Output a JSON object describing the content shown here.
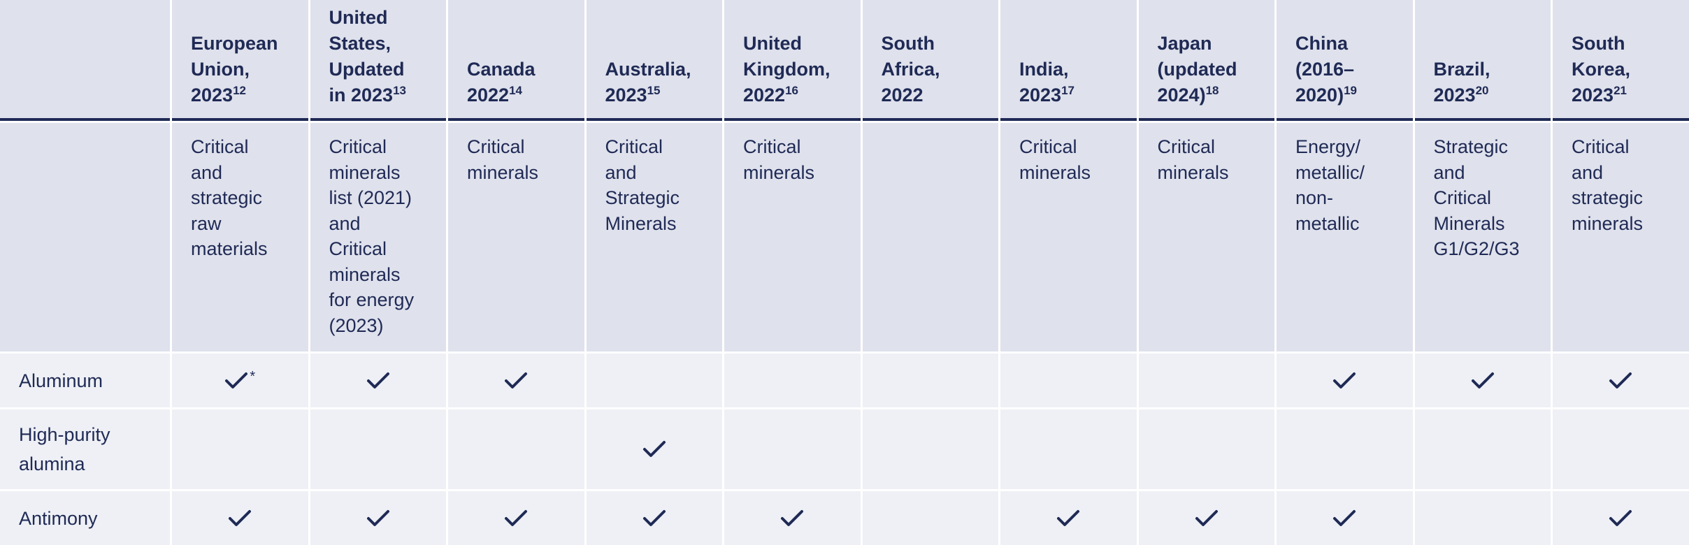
{
  "table": {
    "columns": [
      {
        "lines": [
          "European",
          "Union,",
          "2023"
        ],
        "sup": "12"
      },
      {
        "lines": [
          "United",
          "States,",
          "Updated",
          "in 2023"
        ],
        "sup": "13"
      },
      {
        "lines": [
          "Canada",
          "2022"
        ],
        "sup": "14"
      },
      {
        "lines": [
          "Australia,",
          "2023"
        ],
        "sup": "15"
      },
      {
        "lines": [
          "United",
          "Kingdom,",
          "2022"
        ],
        "sup": "16"
      },
      {
        "lines": [
          "South",
          "Africa,",
          "2022"
        ],
        "sup": null
      },
      {
        "lines": [
          "India,",
          "2023"
        ],
        "sup": "17"
      },
      {
        "lines": [
          "Japan",
          "(updated",
          "2024)"
        ],
        "sup": "18"
      },
      {
        "lines": [
          "China",
          "(2016–",
          "2020)"
        ],
        "sup": "19"
      },
      {
        "lines": [
          "Brazil,",
          "2023"
        ],
        "sup": "20"
      },
      {
        "lines": [
          "South",
          "Korea,",
          "2023"
        ],
        "sup": "21"
      }
    ],
    "list_names": [
      [
        "Critical",
        "and",
        "strategic",
        "raw",
        "materials"
      ],
      [
        "Critical",
        "minerals",
        "list (2021)",
        "and",
        "Critical",
        "minerals",
        "for energy",
        "(2023)"
      ],
      [
        "Critical",
        "minerals"
      ],
      [
        "Critical",
        "and",
        "Strategic",
        "Minerals"
      ],
      [
        "Critical",
        "minerals"
      ],
      null,
      [
        "Critical",
        "minerals"
      ],
      [
        "Critical",
        "minerals"
      ],
      [
        "Energy/",
        "metallic/",
        "non-",
        "metallic"
      ],
      [
        "Strategic",
        "and",
        "Critical",
        "Minerals",
        "G1/G2/G3"
      ],
      [
        "Critical",
        "and",
        "strategic",
        "minerals"
      ]
    ],
    "rows": [
      {
        "label": "Aluminum",
        "checks": [
          true,
          true,
          true,
          false,
          false,
          false,
          false,
          false,
          true,
          true,
          true
        ],
        "check_notes": [
          "*",
          null,
          null,
          null,
          null,
          null,
          null,
          null,
          null,
          null,
          null
        ]
      },
      {
        "label": "High-purity alumina",
        "checks": [
          false,
          false,
          false,
          true,
          false,
          false,
          false,
          false,
          false,
          false,
          false
        ],
        "check_notes": [
          null,
          null,
          null,
          null,
          null,
          null,
          null,
          null,
          null,
          null,
          null
        ]
      },
      {
        "label": "Antimony",
        "checks": [
          true,
          true,
          true,
          true,
          true,
          false,
          true,
          true,
          true,
          false,
          true
        ],
        "check_notes": [
          null,
          null,
          null,
          null,
          null,
          null,
          null,
          null,
          null,
          null,
          null
        ]
      }
    ]
  }
}
